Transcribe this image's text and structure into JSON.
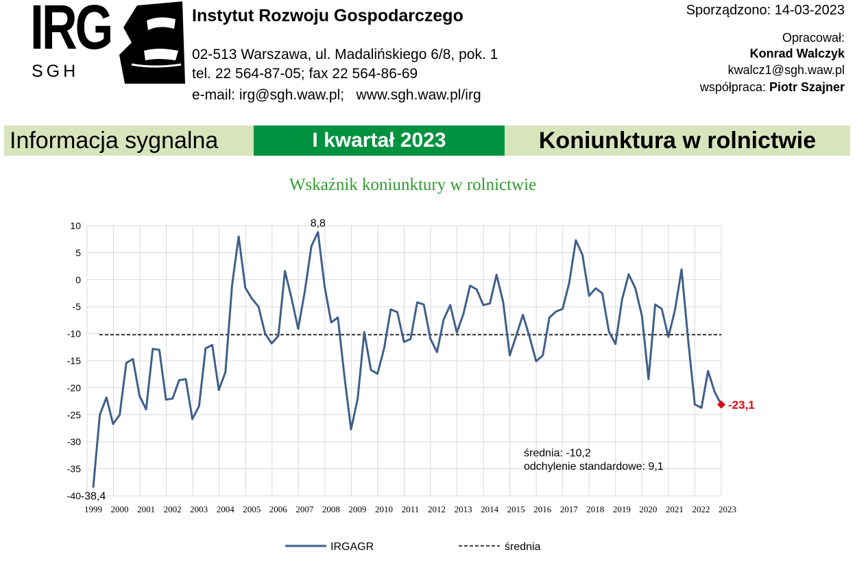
{
  "header": {
    "logo_text": "IRG",
    "logo_sub": "SGH",
    "institute_name": "Instytut Rozwoju Gospodarczego",
    "address": "02-513 Warszawa, ul. Madalińskiego 6/8, pok. 1",
    "phone": "tel. 22 564-87-05; fax 22 564-86-69",
    "contact": "e-mail: irg@sgh.waw.pl;   www.sgh.waw.pl/irg",
    "prepared_date": "Sporządzono: 14-03-2023",
    "author_label": "Opracował:",
    "author_name": "Konrad Walczyk",
    "author_email": "kwalcz1@sgh.waw.pl",
    "coop_label": "współpraca:",
    "coop_name": "Piotr Szajner"
  },
  "banner": {
    "left": "Informacja sygnalna",
    "middle": "I kwartał 2023",
    "right": "Koniunktura w rolnictwie",
    "colors": {
      "light": "#d8e4bc",
      "green": "#00923f"
    }
  },
  "chart_data": {
    "type": "line",
    "title": "Wskaźnik koniunktury w rolnictwie",
    "ylim": [
      -40,
      10
    ],
    "yticks": [
      "10",
      "5",
      "0",
      "-5",
      "-10",
      "-15",
      "-20",
      "-25",
      "-30",
      "-35",
      "-40"
    ],
    "x_tick_labels": [
      "1999",
      "2000",
      "2001",
      "2002",
      "2003",
      "2004",
      "2005",
      "2006",
      "2007",
      "2008",
      "2009",
      "2010",
      "2011",
      "2012",
      "2013",
      "2014",
      "2015",
      "2016",
      "2017",
      "2018",
      "2019",
      "2020",
      "2021",
      "2022",
      "2023"
    ],
    "grid": true,
    "series": [
      {
        "name": "IRGAGR",
        "color": "#3f5f8a",
        "values": [
          -38.4,
          -25,
          -21.8,
          -26.7,
          -25,
          -15.4,
          -14.7,
          -21.5,
          -24,
          -12.8,
          -13,
          -22.2,
          -22,
          -18.6,
          -18.4,
          -25.8,
          -23.4,
          -12.7,
          -12.1,
          -20.4,
          -17.1,
          -1,
          8,
          -1.5,
          -3.5,
          -5,
          -10,
          -11.8,
          -10.4,
          1.6,
          -3.5,
          -9.1,
          -2.2,
          6.2,
          8.8,
          -1.3,
          -7.9,
          -7,
          -17.9,
          -27.7,
          -22,
          -9.7,
          -16.7,
          -17.4,
          -12.7,
          -5.5,
          -6,
          -11.5,
          -11,
          -4.2,
          -4.6,
          -10.9,
          -13.4,
          -7.4,
          -4.7,
          -9.8,
          -6.3,
          -1.1,
          -1.8,
          -4.7,
          -4.4,
          0.9,
          -4.1,
          -14,
          -10.3,
          -6.5,
          -10.6,
          -15.1,
          -14,
          -7,
          -5.9,
          -5.4,
          -0.6,
          7.3,
          4.6,
          -3,
          -1.6,
          -2.5,
          -9.6,
          -11.9,
          -3.6,
          1,
          -1.6,
          -6.7,
          -18.4,
          -4.6,
          -5.4,
          -10.6,
          -5.6,
          1.9,
          -11.3,
          -23.1,
          -23.7,
          -16.9,
          -20.8,
          -23.1
        ]
      },
      {
        "name": "średnia",
        "value": -10.2,
        "color": "#000000",
        "style": "dashed"
      }
    ],
    "annotations": {
      "max": "8,8",
      "min": "-38,4",
      "last": "-23,1"
    },
    "stats": {
      "mean": "średnia: -10,2",
      "std": "odchylenie standardowe: 9,1"
    },
    "legend_position": "bottom",
    "highlight_color": "#e30613"
  }
}
